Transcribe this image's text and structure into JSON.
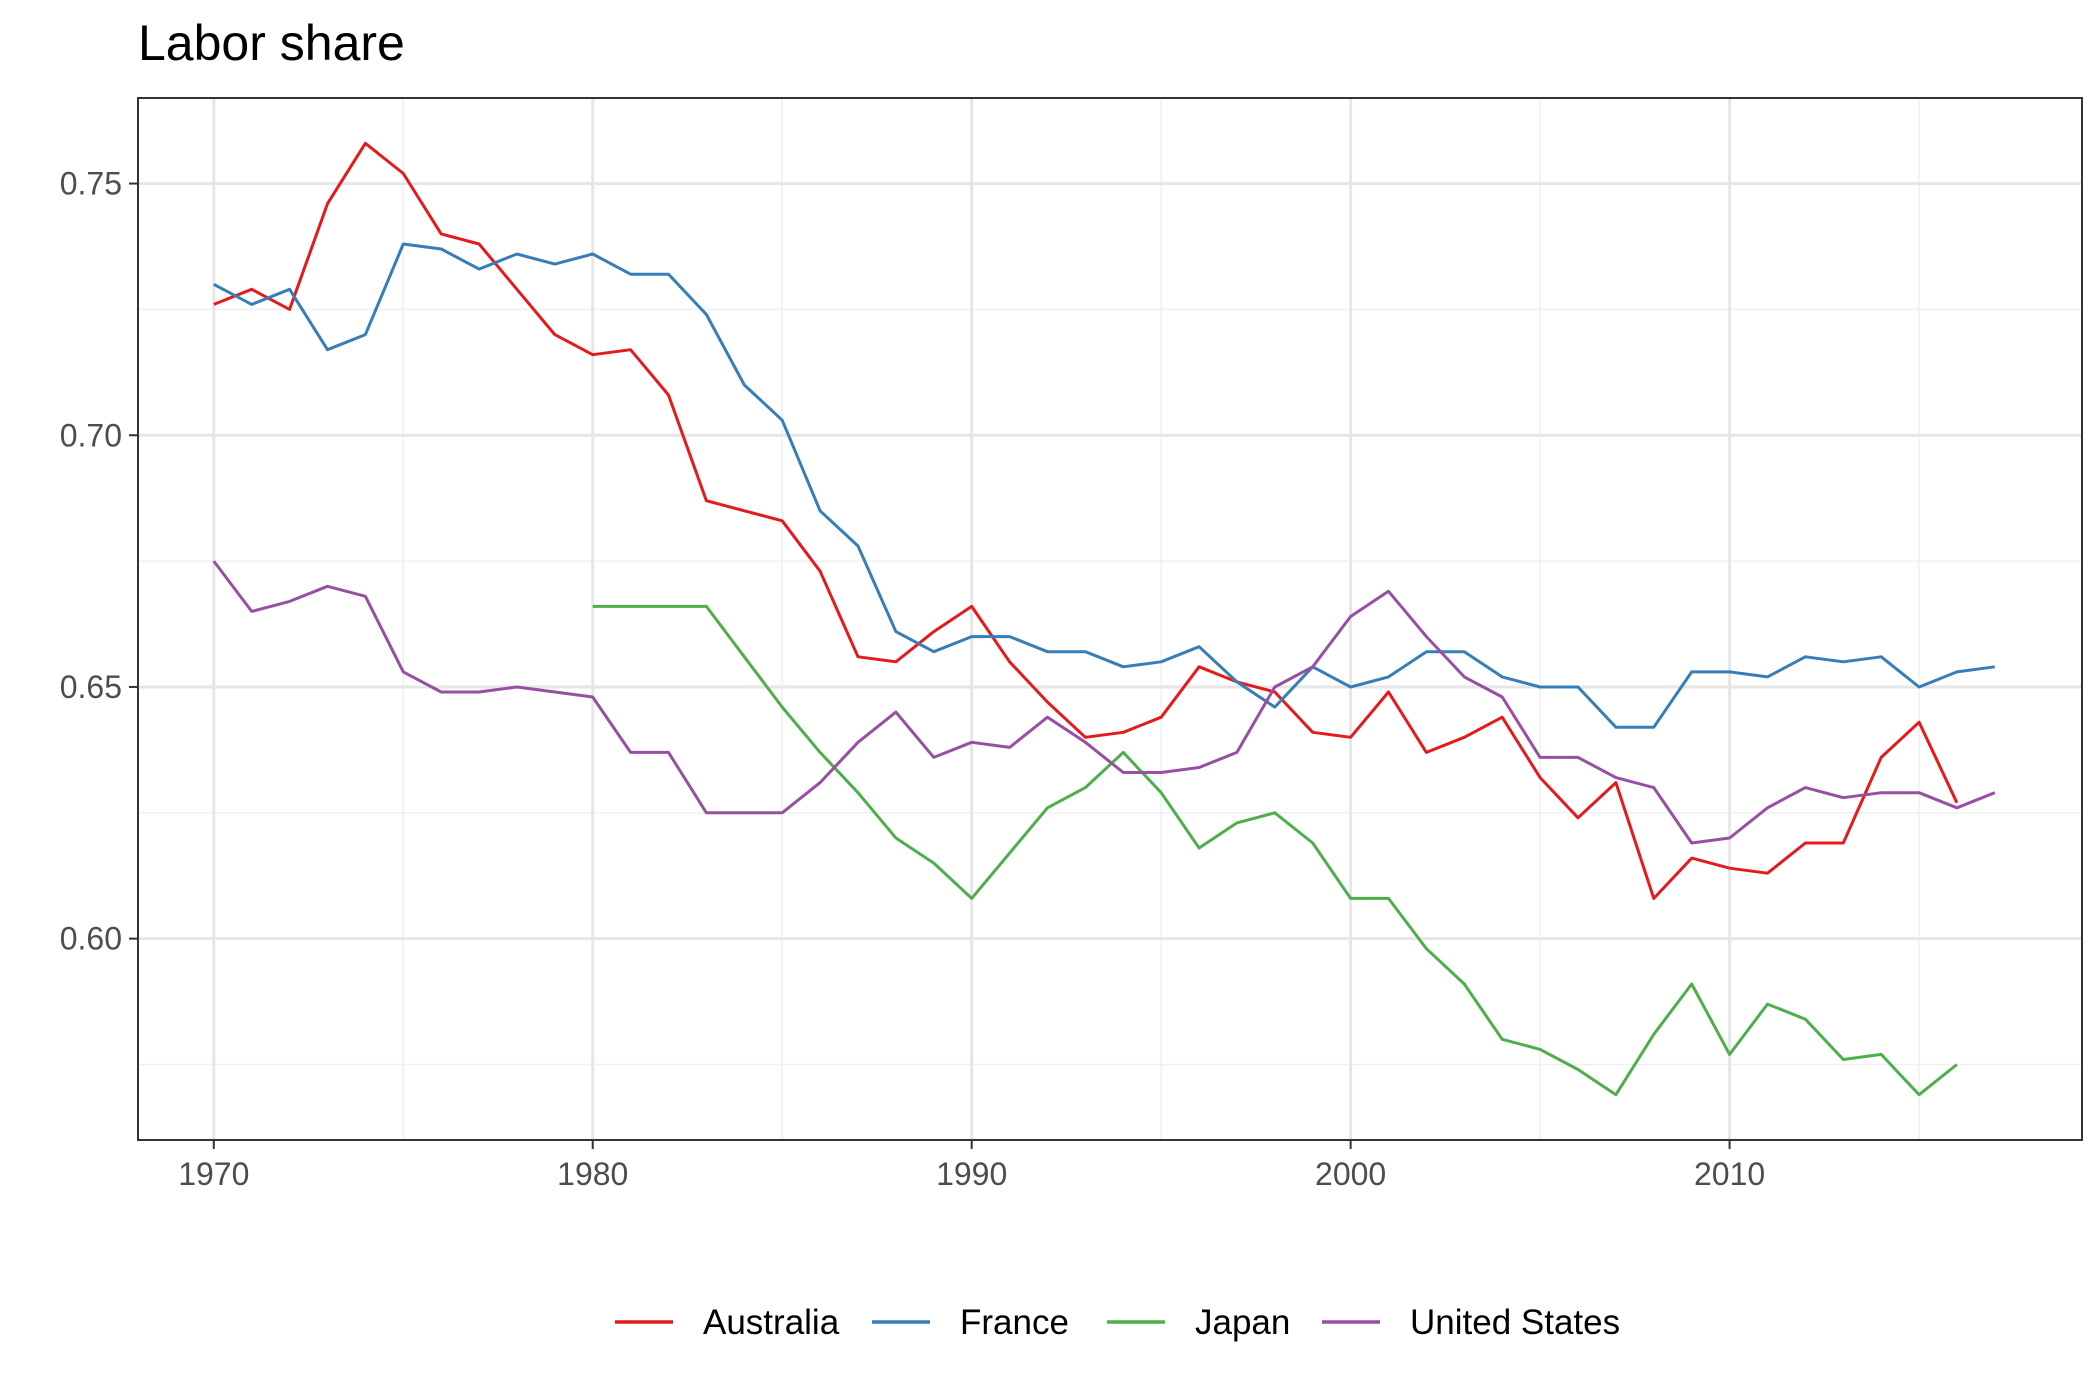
{
  "chart_data": {
    "type": "line",
    "title": "Labor share",
    "xlabel": "",
    "ylabel": "",
    "xlim": [
      1968,
      2019.3
    ],
    "ylim": [
      0.56,
      0.767
    ],
    "x_ticks": [
      1970,
      1980,
      1990,
      2000,
      2010
    ],
    "x_tick_labels": [
      "1970",
      "1980",
      "1990",
      "2000",
      "2010"
    ],
    "y_ticks": [
      0.6,
      0.65,
      0.7,
      0.75
    ],
    "y_tick_labels": [
      "0.60",
      "0.65",
      "0.70",
      "0.75"
    ],
    "grid": true,
    "legend_position": "bottom",
    "series": [
      {
        "name": "Australia",
        "color": "#E41A1C",
        "x": [
          1970,
          1971,
          1972,
          1973,
          1974,
          1975,
          1976,
          1977,
          1978,
          1979,
          1980,
          1981,
          1982,
          1983,
          1984,
          1985,
          1986,
          1987,
          1988,
          1989,
          1990,
          1991,
          1992,
          1993,
          1994,
          1995,
          1996,
          1997,
          1998,
          1999,
          2000,
          2001,
          2002,
          2003,
          2004,
          2005,
          2006,
          2007,
          2008,
          2009,
          2010,
          2011,
          2012,
          2013,
          2014,
          2015,
          2016
        ],
        "values": [
          0.726,
          0.729,
          0.725,
          0.746,
          0.758,
          0.752,
          0.74,
          0.738,
          0.729,
          0.72,
          0.716,
          0.717,
          0.708,
          0.687,
          0.685,
          0.683,
          0.673,
          0.656,
          0.655,
          0.661,
          0.666,
          0.655,
          0.647,
          0.64,
          0.641,
          0.644,
          0.654,
          0.651,
          0.649,
          0.641,
          0.64,
          0.649,
          0.637,
          0.64,
          0.644,
          0.632,
          0.624,
          0.631,
          0.608,
          0.616,
          0.614,
          0.613,
          0.619,
          0.619,
          0.636,
          0.643,
          0.627
        ]
      },
      {
        "name": "France",
        "color": "#377EB8",
        "x": [
          1970,
          1971,
          1972,
          1973,
          1974,
          1975,
          1976,
          1977,
          1978,
          1979,
          1980,
          1981,
          1982,
          1983,
          1984,
          1985,
          1986,
          1987,
          1988,
          1989,
          1990,
          1991,
          1992,
          1993,
          1994,
          1995,
          1996,
          1997,
          1998,
          1999,
          2000,
          2001,
          2002,
          2003,
          2004,
          2005,
          2006,
          2007,
          2008,
          2009,
          2010,
          2011,
          2012,
          2013,
          2014,
          2015,
          2016,
          2017
        ],
        "values": [
          0.73,
          0.726,
          0.729,
          0.717,
          0.72,
          0.738,
          0.737,
          0.733,
          0.736,
          0.734,
          0.736,
          0.732,
          0.732,
          0.724,
          0.71,
          0.703,
          0.685,
          0.678,
          0.661,
          0.657,
          0.66,
          0.66,
          0.657,
          0.657,
          0.654,
          0.655,
          0.658,
          0.651,
          0.646,
          0.654,
          0.65,
          0.652,
          0.657,
          0.657,
          0.652,
          0.65,
          0.65,
          0.642,
          0.642,
          0.653,
          0.653,
          0.652,
          0.656,
          0.655,
          0.656,
          0.65,
          0.653,
          0.654
        ]
      },
      {
        "name": "Japan",
        "color": "#4DAF4A",
        "x": [
          1980,
          1981,
          1982,
          1983,
          1984,
          1985,
          1986,
          1987,
          1988,
          1989,
          1990,
          1991,
          1992,
          1993,
          1994,
          1995,
          1996,
          1997,
          1998,
          1999,
          2000,
          2001,
          2002,
          2003,
          2004,
          2005,
          2006,
          2007,
          2008,
          2009,
          2010,
          2011,
          2012,
          2013,
          2014,
          2015,
          2016
        ],
        "values": [
          0.666,
          0.666,
          0.666,
          0.666,
          0.656,
          0.646,
          0.637,
          0.629,
          0.62,
          0.615,
          0.608,
          0.617,
          0.626,
          0.63,
          0.637,
          0.629,
          0.618,
          0.623,
          0.625,
          0.619,
          0.608,
          0.608,
          0.598,
          0.591,
          0.58,
          0.578,
          0.574,
          0.569,
          0.581,
          0.591,
          0.577,
          0.587,
          0.584,
          0.576,
          0.577,
          0.569,
          0.575
        ]
      },
      {
        "name": "United States",
        "color": "#984EA3",
        "x": [
          1970,
          1971,
          1972,
          1973,
          1974,
          1975,
          1976,
          1977,
          1978,
          1979,
          1980,
          1981,
          1982,
          1983,
          1984,
          1985,
          1986,
          1987,
          1988,
          1989,
          1990,
          1991,
          1992,
          1993,
          1994,
          1995,
          1996,
          1997,
          1998,
          1999,
          2000,
          2001,
          2002,
          2003,
          2004,
          2005,
          2006,
          2007,
          2008,
          2009,
          2010,
          2011,
          2012,
          2013,
          2014,
          2015,
          2016,
          2017
        ],
        "values": [
          0.675,
          0.665,
          0.667,
          0.67,
          0.668,
          0.653,
          0.649,
          0.649,
          0.65,
          0.649,
          0.648,
          0.637,
          0.637,
          0.625,
          0.625,
          0.625,
          0.631,
          0.639,
          0.645,
          0.636,
          0.639,
          0.638,
          0.644,
          0.639,
          0.633,
          0.633,
          0.634,
          0.637,
          0.65,
          0.654,
          0.664,
          0.669,
          0.66,
          0.652,
          0.648,
          0.636,
          0.636,
          0.632,
          0.63,
          0.619,
          0.62,
          0.626,
          0.63,
          0.628,
          0.629,
          0.629,
          0.626,
          0.629
        ]
      }
    ]
  }
}
